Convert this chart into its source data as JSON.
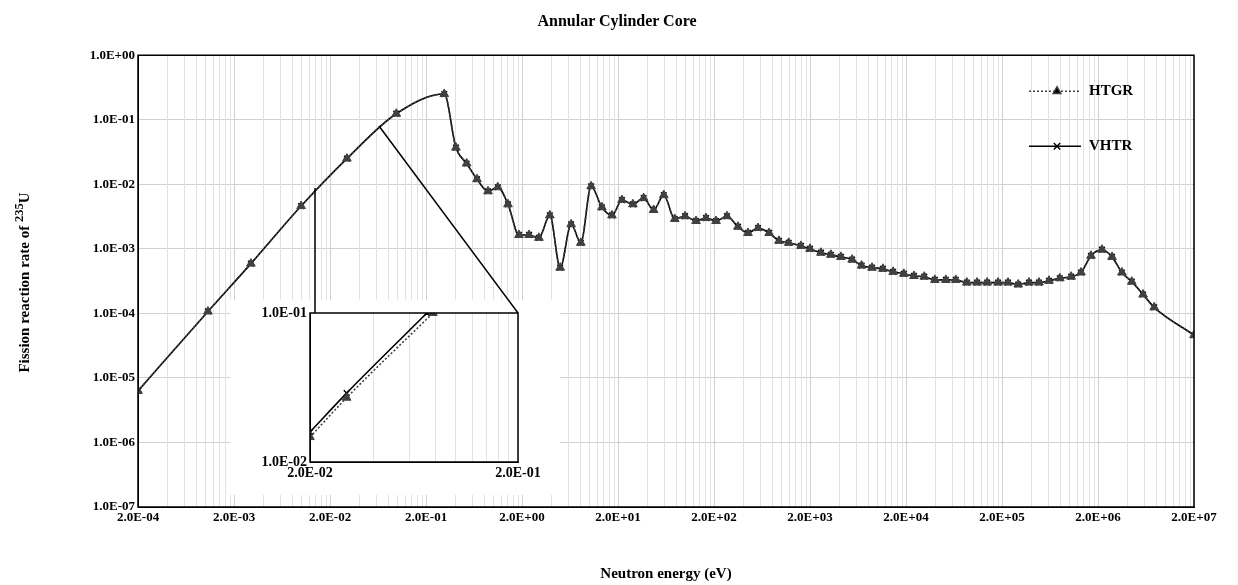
{
  "chart_data": [
    {
      "type": "line",
      "title": "Annular Cylinder Core",
      "xlabel": "Neutron energy (eV)",
      "ylabel": "Fission reaction rate of $^{235}$U",
      "log": "xy",
      "grid": true,
      "legend": "top right",
      "x": [
        0.0002,
        0.00107,
        0.003,
        0.01,
        0.03,
        0.098,
        0.31,
        0.41,
        0.53,
        0.68,
        0.885,
        1.12,
        1.43,
        1.86,
        2.37,
        3.0,
        3.9,
        5.0,
        6.5,
        8.2,
        10.5,
        13.6,
        17.3,
        22,
        28.6,
        37,
        47,
        60,
        78,
        100,
        130,
        165,
        210,
        273,
        355,
        452,
        575,
        750,
        950,
        1200,
        1610,
        2000,
        2600,
        3300,
        4200,
        5500,
        6900,
        8850,
        11500,
        14700,
        19000,
        24200,
        31000,
        40000,
        52000,
        66000,
        86000,
        110000,
        140000,
        182000,
        231000,
        295000,
        382000,
        485000,
        617000,
        800000,
        1050000,
        1330000,
        1690000,
        2200000,
        2800000,
        3550000,
        4500000,
        5900000,
        7700000,
        20000000
      ],
      "xlim": [
        0.0002,
        20000000
      ],
      "xticks": [
        {
          "value": 0.0002,
          "label": "2.0E-04"
        },
        {
          "value": 0.002,
          "label": "2.0E-03"
        },
        {
          "value": 0.02,
          "label": "2.0E-02"
        },
        {
          "value": 0.2,
          "label": "2.0E-01"
        },
        {
          "value": 2,
          "label": "2.0E+00"
        },
        {
          "value": 20,
          "label": "2.0E+01"
        },
        {
          "value": 200,
          "label": "2.0E+02"
        },
        {
          "value": 2000,
          "label": "2.0E+03"
        },
        {
          "value": 20000,
          "label": "2.0E+04"
        },
        {
          "value": 200000,
          "label": "2.0E+05"
        },
        {
          "value": 2000000,
          "label": "2.0E+06"
        },
        {
          "value": 20000000,
          "label": "2.0E+07"
        }
      ],
      "ylim": [
        1e-07,
        1
      ],
      "yticks": [
        {
          "value": 1e-07,
          "label": "1.0E-07"
        },
        {
          "value": 1e-06,
          "label": "1.0E-06"
        },
        {
          "value": 1e-05,
          "label": "1.0E-05"
        },
        {
          "value": 0.0001,
          "label": "1.0E-04"
        },
        {
          "value": 0.001,
          "label": "1.0E-03"
        },
        {
          "value": 0.01,
          "label": "1.0E-02"
        },
        {
          "value": 0.1,
          "label": "1.0E-01"
        },
        {
          "value": 1,
          "label": "1.0E+00"
        }
      ],
      "series": [
        {
          "name": "HTGR",
          "color": "#404040",
          "marker": "triangle",
          "line_style": "dotted",
          "values": [
            6.3e-06,
            0.000107,
            0.00059,
            0.0046,
            0.025,
            0.124,
            0.25,
            0.037,
            0.021,
            0.012,
            0.0078,
            0.009,
            0.0049,
            0.00164,
            0.00164,
            0.00148,
            0.0033,
            0.00051,
            0.0024,
            0.00124,
            0.0093,
            0.0044,
            0.0033,
            0.0057,
            0.0049,
            0.0061,
            0.004,
            0.0068,
            0.0029,
            0.0032,
            0.0027,
            0.003,
            0.0027,
            0.0032,
            0.0022,
            0.00176,
            0.0021,
            0.00176,
            0.00133,
            0.00124,
            0.00111,
            0.001,
            0.00087,
            0.00081,
            0.00075,
            0.00068,
            0.00055,
            0.00051,
            0.00049,
            0.00044,
            0.00041,
            0.00038,
            0.00037,
            0.00033,
            0.00033,
            0.00033,
            0.0003,
            0.0003,
            0.0003,
            0.0003,
            0.0003,
            0.00028,
            0.0003,
            0.0003,
            0.00032,
            0.00035,
            0.00037,
            0.00043,
            0.00078,
            0.00097,
            0.00075,
            0.00043,
            0.00031,
            0.000196,
            0.000124,
            4.6e-05
          ]
        },
        {
          "name": "VHTR",
          "color": "#000000",
          "marker": "cross",
          "line_style": "solid",
          "values": [
            6.3e-06,
            0.000107,
            0.00059,
            0.0046,
            0.025,
            0.124,
            0.25,
            0.037,
            0.021,
            0.012,
            0.0078,
            0.009,
            0.0049,
            0.00164,
            0.00164,
            0.00148,
            0.0033,
            0.00051,
            0.0024,
            0.00124,
            0.0093,
            0.0044,
            0.0033,
            0.0057,
            0.0049,
            0.0061,
            0.004,
            0.0068,
            0.0029,
            0.0032,
            0.0027,
            0.003,
            0.0027,
            0.0032,
            0.0022,
            0.00176,
            0.0021,
            0.00176,
            0.00133,
            0.00124,
            0.00111,
            0.001,
            0.00087,
            0.00081,
            0.00075,
            0.00068,
            0.00055,
            0.00051,
            0.00049,
            0.00044,
            0.00041,
            0.00038,
            0.00037,
            0.00033,
            0.00033,
            0.00033,
            0.0003,
            0.0003,
            0.0003,
            0.0003,
            0.0003,
            0.00028,
            0.0003,
            0.0003,
            0.00032,
            0.00035,
            0.00037,
            0.00043,
            0.00078,
            0.00097,
            0.00075,
            0.00043,
            0.00031,
            0.000196,
            0.000124,
            4.6e-05
          ]
        }
      ]
    },
    {
      "type": "line",
      "log": "xy",
      "grid": "x",
      "xlim": [
        0.02,
        0.2
      ],
      "xticks": [
        {
          "value": 0.02,
          "label": "2.0E-02"
        },
        {
          "value": 0.2,
          "label": "2.0E-01"
        }
      ],
      "ylim": [
        0.01,
        0.1
      ],
      "yticks": [
        {
          "value": 0.01,
          "label": "1.0E-02"
        },
        {
          "value": 0.1,
          "label": "1.0E-01"
        }
      ],
      "series": [
        {
          "color": "#404040",
          "marker": "triangle",
          "line_style": "dotted",
          "x": [
            0.02,
            0.03,
            0.078
          ],
          "values": [
            0.0147,
            0.027,
            0.1
          ]
        },
        {
          "color": "#000000",
          "marker": "cross",
          "line_style": "solid",
          "x": [
            0.02,
            0.03,
            0.073
          ],
          "values": [
            0.0159,
            0.029,
            0.1
          ]
        }
      ]
    }
  ]
}
